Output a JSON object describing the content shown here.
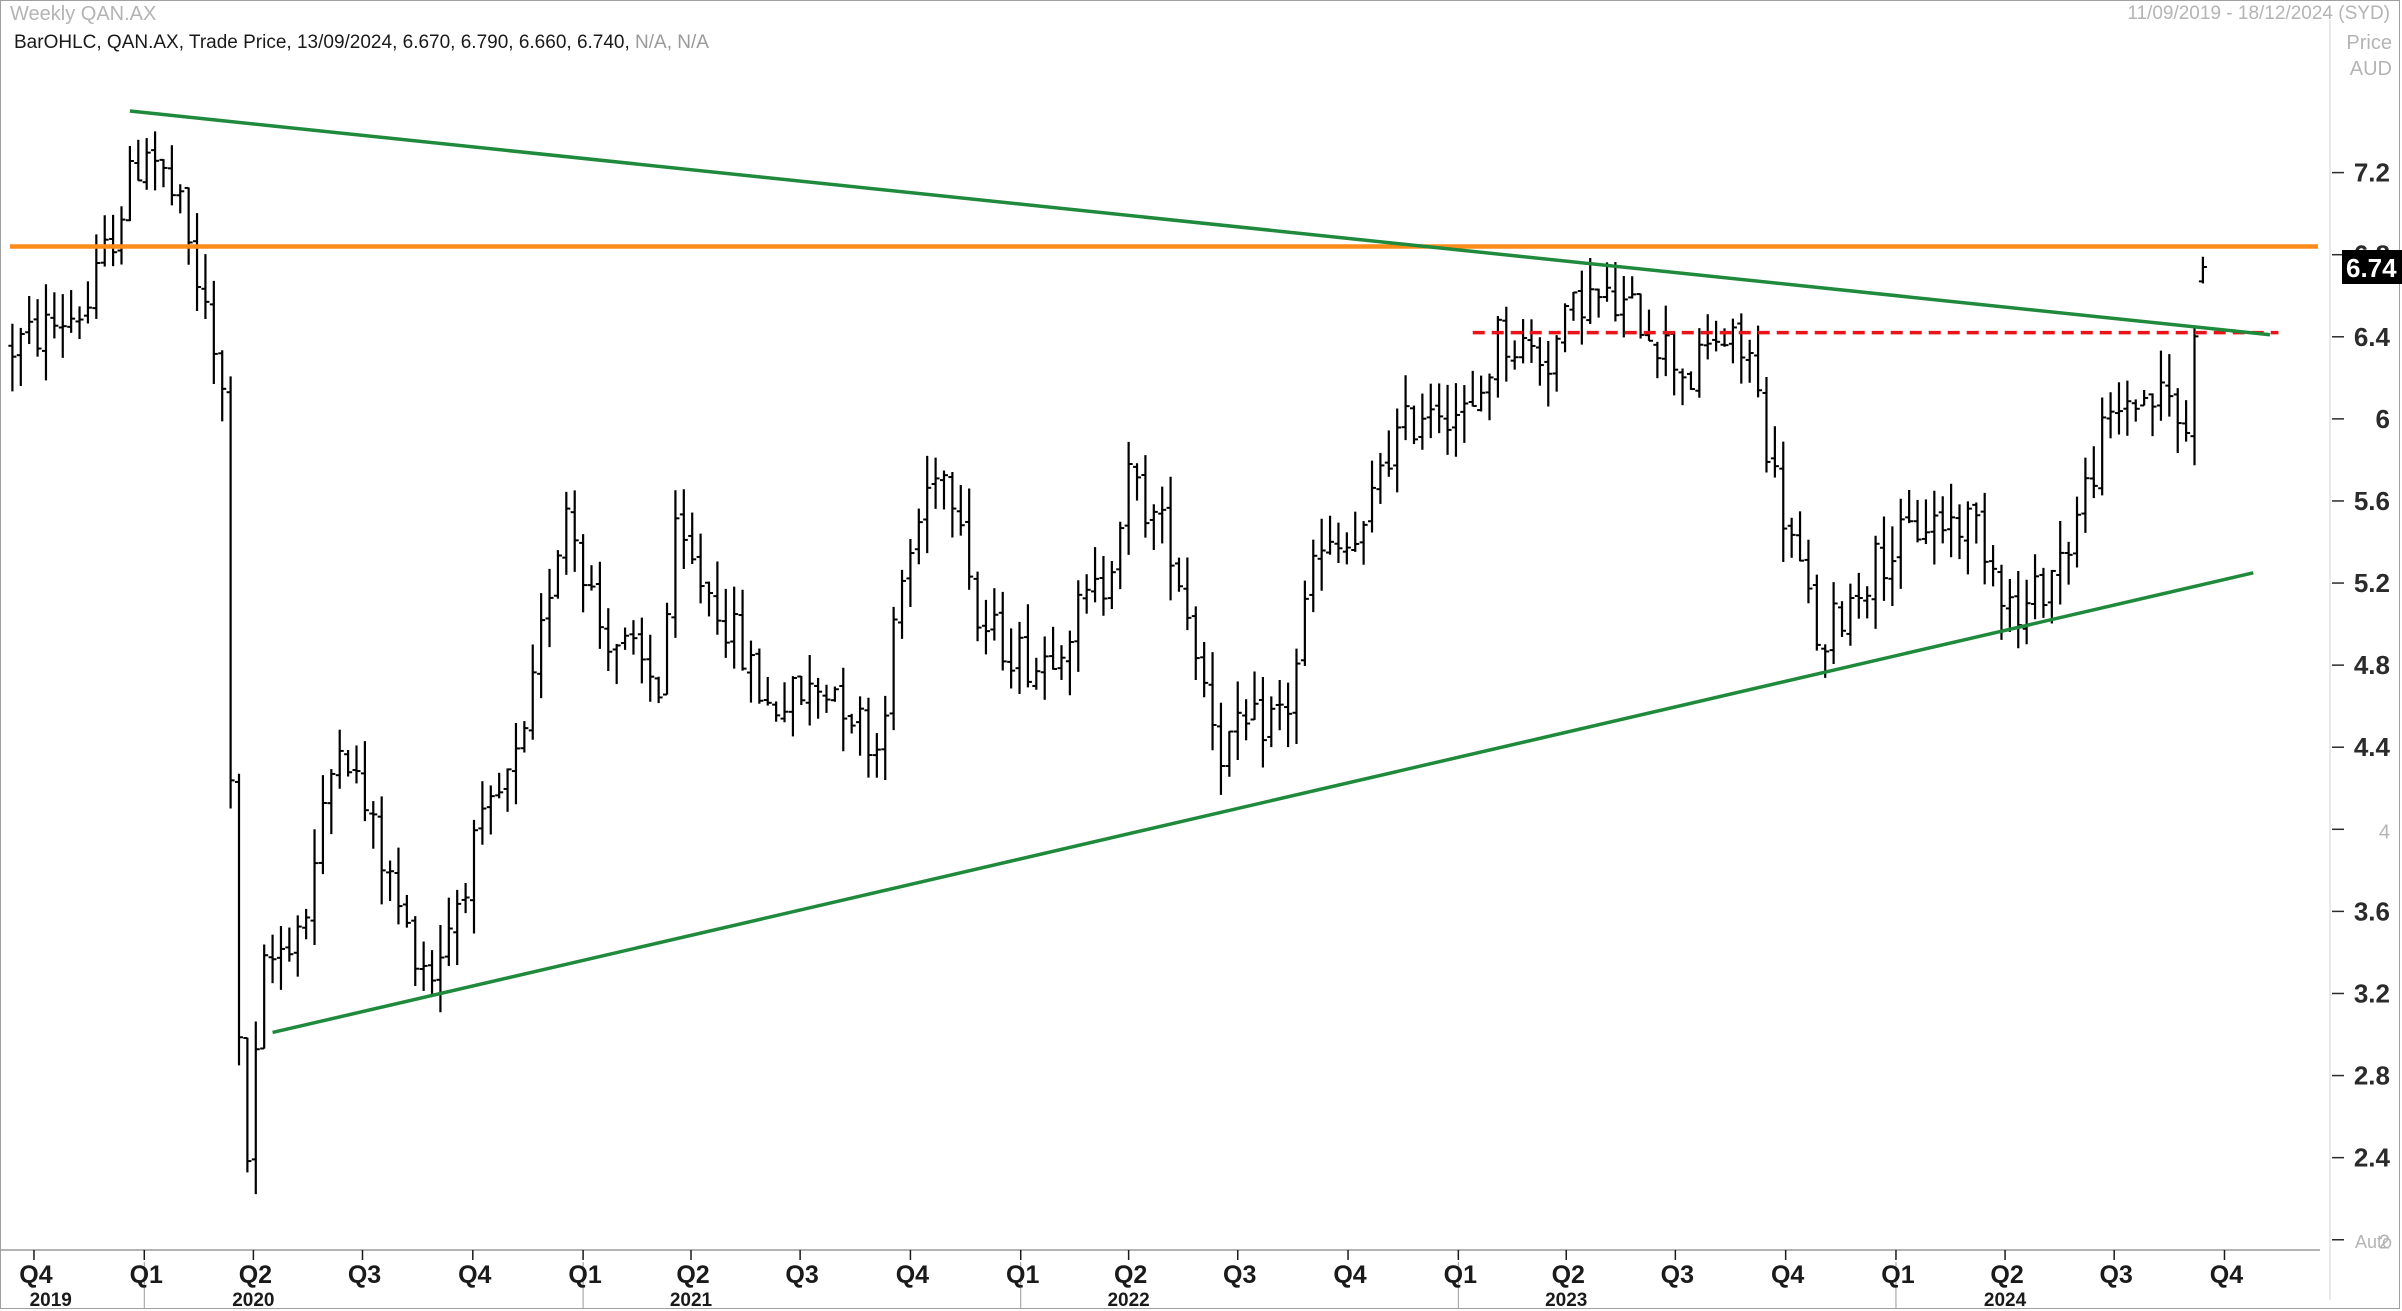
{
  "header": {
    "title": "Weekly QAN.AX",
    "date_range": "11/09/2019 - 18/12/2024 (SYD)",
    "series_prefix": "BarOHLC, QAN.AX, Trade Price, 13/09/2024, 6.670, 6.790, 6.660, 6.740, ",
    "series_na": "N/A, N/A",
    "price_label_1": "Price",
    "price_label_2": "AUD"
  },
  "chart_data": {
    "type": "ohlc",
    "title": "Weekly QAN.AX",
    "y_ticks": [
      "7.2",
      "6.8",
      "6.4",
      "6",
      "5.6",
      "5.2",
      "4.8",
      "4.4",
      "4",
      "3.6",
      "3.2",
      "2.8",
      "2.4",
      "2"
    ],
    "ylim": [
      1.95,
      7.7
    ],
    "x_start": "2019-09-11",
    "x_end": "2024-12-18",
    "quarter_labels": [
      "Q4",
      "Q1",
      "Q2",
      "Q3",
      "Q4",
      "Q1",
      "Q2",
      "Q3",
      "Q4",
      "Q1",
      "Q2",
      "Q3",
      "Q4",
      "Q1",
      "Q2",
      "Q3",
      "Q4",
      "Q1",
      "Q2",
      "Q3",
      "Q4"
    ],
    "quarter_dates": [
      "2019-10-01",
      "2020-01-01",
      "2020-04-01",
      "2020-07-01",
      "2020-10-01",
      "2021-01-01",
      "2021-04-01",
      "2021-07-01",
      "2021-10-01",
      "2022-01-01",
      "2022-04-01",
      "2022-07-01",
      "2022-10-01",
      "2023-01-01",
      "2023-04-01",
      "2023-07-01",
      "2023-10-01",
      "2024-01-01",
      "2024-04-01",
      "2024-07-01",
      "2024-10-01"
    ],
    "year_labels": [
      "2019",
      "2020",
      "2021",
      "2022",
      "2023",
      "2024"
    ],
    "year_label_dates": [
      "2019-10-15",
      "2020-04-01",
      "2021-04-01",
      "2022-04-01",
      "2023-04-01",
      "2024-04-01"
    ],
    "year_boundaries": [
      "2020-01-01",
      "2021-01-01",
      "2022-01-01",
      "2023-01-01",
      "2024-01-01"
    ],
    "last_price": "6.74",
    "last_ohlc": {
      "date": "2024-09-13",
      "open": 6.67,
      "high": 6.79,
      "low": 6.66,
      "close": 6.74
    },
    "auto_label": "Auto",
    "colors": {
      "bars": "#000000",
      "trendline": "#1f8a3c",
      "resistance": "#ff8c1a",
      "breakout": "#e8141a",
      "last_box": "#000000"
    },
    "anchors": [
      [
        "2019-09-13",
        6.35
      ],
      [
        "2019-11-15",
        6.55
      ],
      [
        "2019-12-20",
        7.15
      ],
      [
        "2020-01-03",
        7.35
      ],
      [
        "2020-01-31",
        7.0
      ],
      [
        "2020-02-21",
        6.5
      ],
      [
        "2020-03-06",
        6.1
      ],
      [
        "2020-03-13",
        4.3
      ],
      [
        "2020-03-20",
        2.9
      ],
      [
        "2020-03-27",
        2.4
      ],
      [
        "2020-04-10",
        3.3
      ],
      [
        "2020-05-15",
        3.6
      ],
      [
        "2020-06-12",
        4.5
      ],
      [
        "2020-07-03",
        4.1
      ],
      [
        "2020-08-07",
        3.5
      ],
      [
        "2020-08-28",
        3.3
      ],
      [
        "2020-10-02",
        3.9
      ],
      [
        "2020-11-13",
        4.4
      ],
      [
        "2020-12-04",
        5.2
      ],
      [
        "2020-12-18",
        5.6
      ],
      [
        "2021-01-15",
        5.0
      ],
      [
        "2021-03-05",
        4.7
      ],
      [
        "2021-03-19",
        5.4
      ],
      [
        "2021-04-23",
        5.1
      ],
      [
        "2021-06-04",
        4.6
      ],
      [
        "2021-07-30",
        4.7
      ],
      [
        "2021-09-03",
        4.4
      ],
      [
        "2021-09-24",
        5.2
      ],
      [
        "2021-10-22",
        5.8
      ],
      [
        "2021-11-12",
        5.6
      ],
      [
        "2021-11-26",
        5.0
      ],
      [
        "2022-01-14",
        4.8
      ],
      [
        "2022-03-11",
        5.2
      ],
      [
        "2022-04-01",
        5.7
      ],
      [
        "2022-05-06",
        5.4
      ],
      [
        "2022-06-17",
        4.4
      ],
      [
        "2022-07-15",
        4.5
      ],
      [
        "2022-08-12",
        4.6
      ],
      [
        "2022-09-02",
        5.3
      ],
      [
        "2022-10-14",
        5.4
      ],
      [
        "2022-10-28",
        5.8
      ],
      [
        "2022-12-09",
        6.1
      ],
      [
        "2023-01-13",
        6.0
      ],
      [
        "2023-02-03",
        6.4
      ],
      [
        "2023-03-17",
        6.3
      ],
      [
        "2023-04-14",
        6.6
      ],
      [
        "2023-06-02",
        6.5
      ],
      [
        "2023-07-14",
        6.2
      ],
      [
        "2023-08-04",
        6.4
      ],
      [
        "2023-09-01",
        6.3
      ],
      [
        "2023-09-22",
        5.7
      ],
      [
        "2023-10-20",
        5.1
      ],
      [
        "2023-11-03",
        4.8
      ],
      [
        "2023-11-10",
        5.0
      ],
      [
        "2023-12-15",
        5.3
      ],
      [
        "2024-01-26",
        5.5
      ],
      [
        "2024-03-08",
        5.5
      ],
      [
        "2024-04-12",
        5.0
      ],
      [
        "2024-05-24",
        5.4
      ],
      [
        "2024-06-21",
        5.9
      ],
      [
        "2024-07-12",
        6.1
      ],
      [
        "2024-08-16",
        6.1
      ],
      [
        "2024-08-30",
        5.9
      ],
      [
        "2024-09-06",
        6.5
      ],
      [
        "2024-09-13",
        6.74
      ],
      [
        "2024-10-04",
        6.74
      ]
    ],
    "trendlines": [
      {
        "name": "upper",
        "from": {
          "date": "2019-12-20",
          "price": 7.5
        },
        "to": {
          "date": "2024-11-08",
          "price": 6.41
        }
      },
      {
        "name": "lower",
        "from": {
          "date": "2020-04-17",
          "price": 3.01
        },
        "to": {
          "date": "2024-10-25",
          "price": 5.25
        }
      }
    ],
    "hlines": [
      {
        "name": "resistance",
        "price": 6.84,
        "from": "2019-09-11",
        "to": "2024-12-18",
        "style": "solid"
      },
      {
        "name": "breakout",
        "price": 6.42,
        "from": "2023-01-13",
        "to": "2024-11-15",
        "style": "dashed"
      }
    ]
  }
}
